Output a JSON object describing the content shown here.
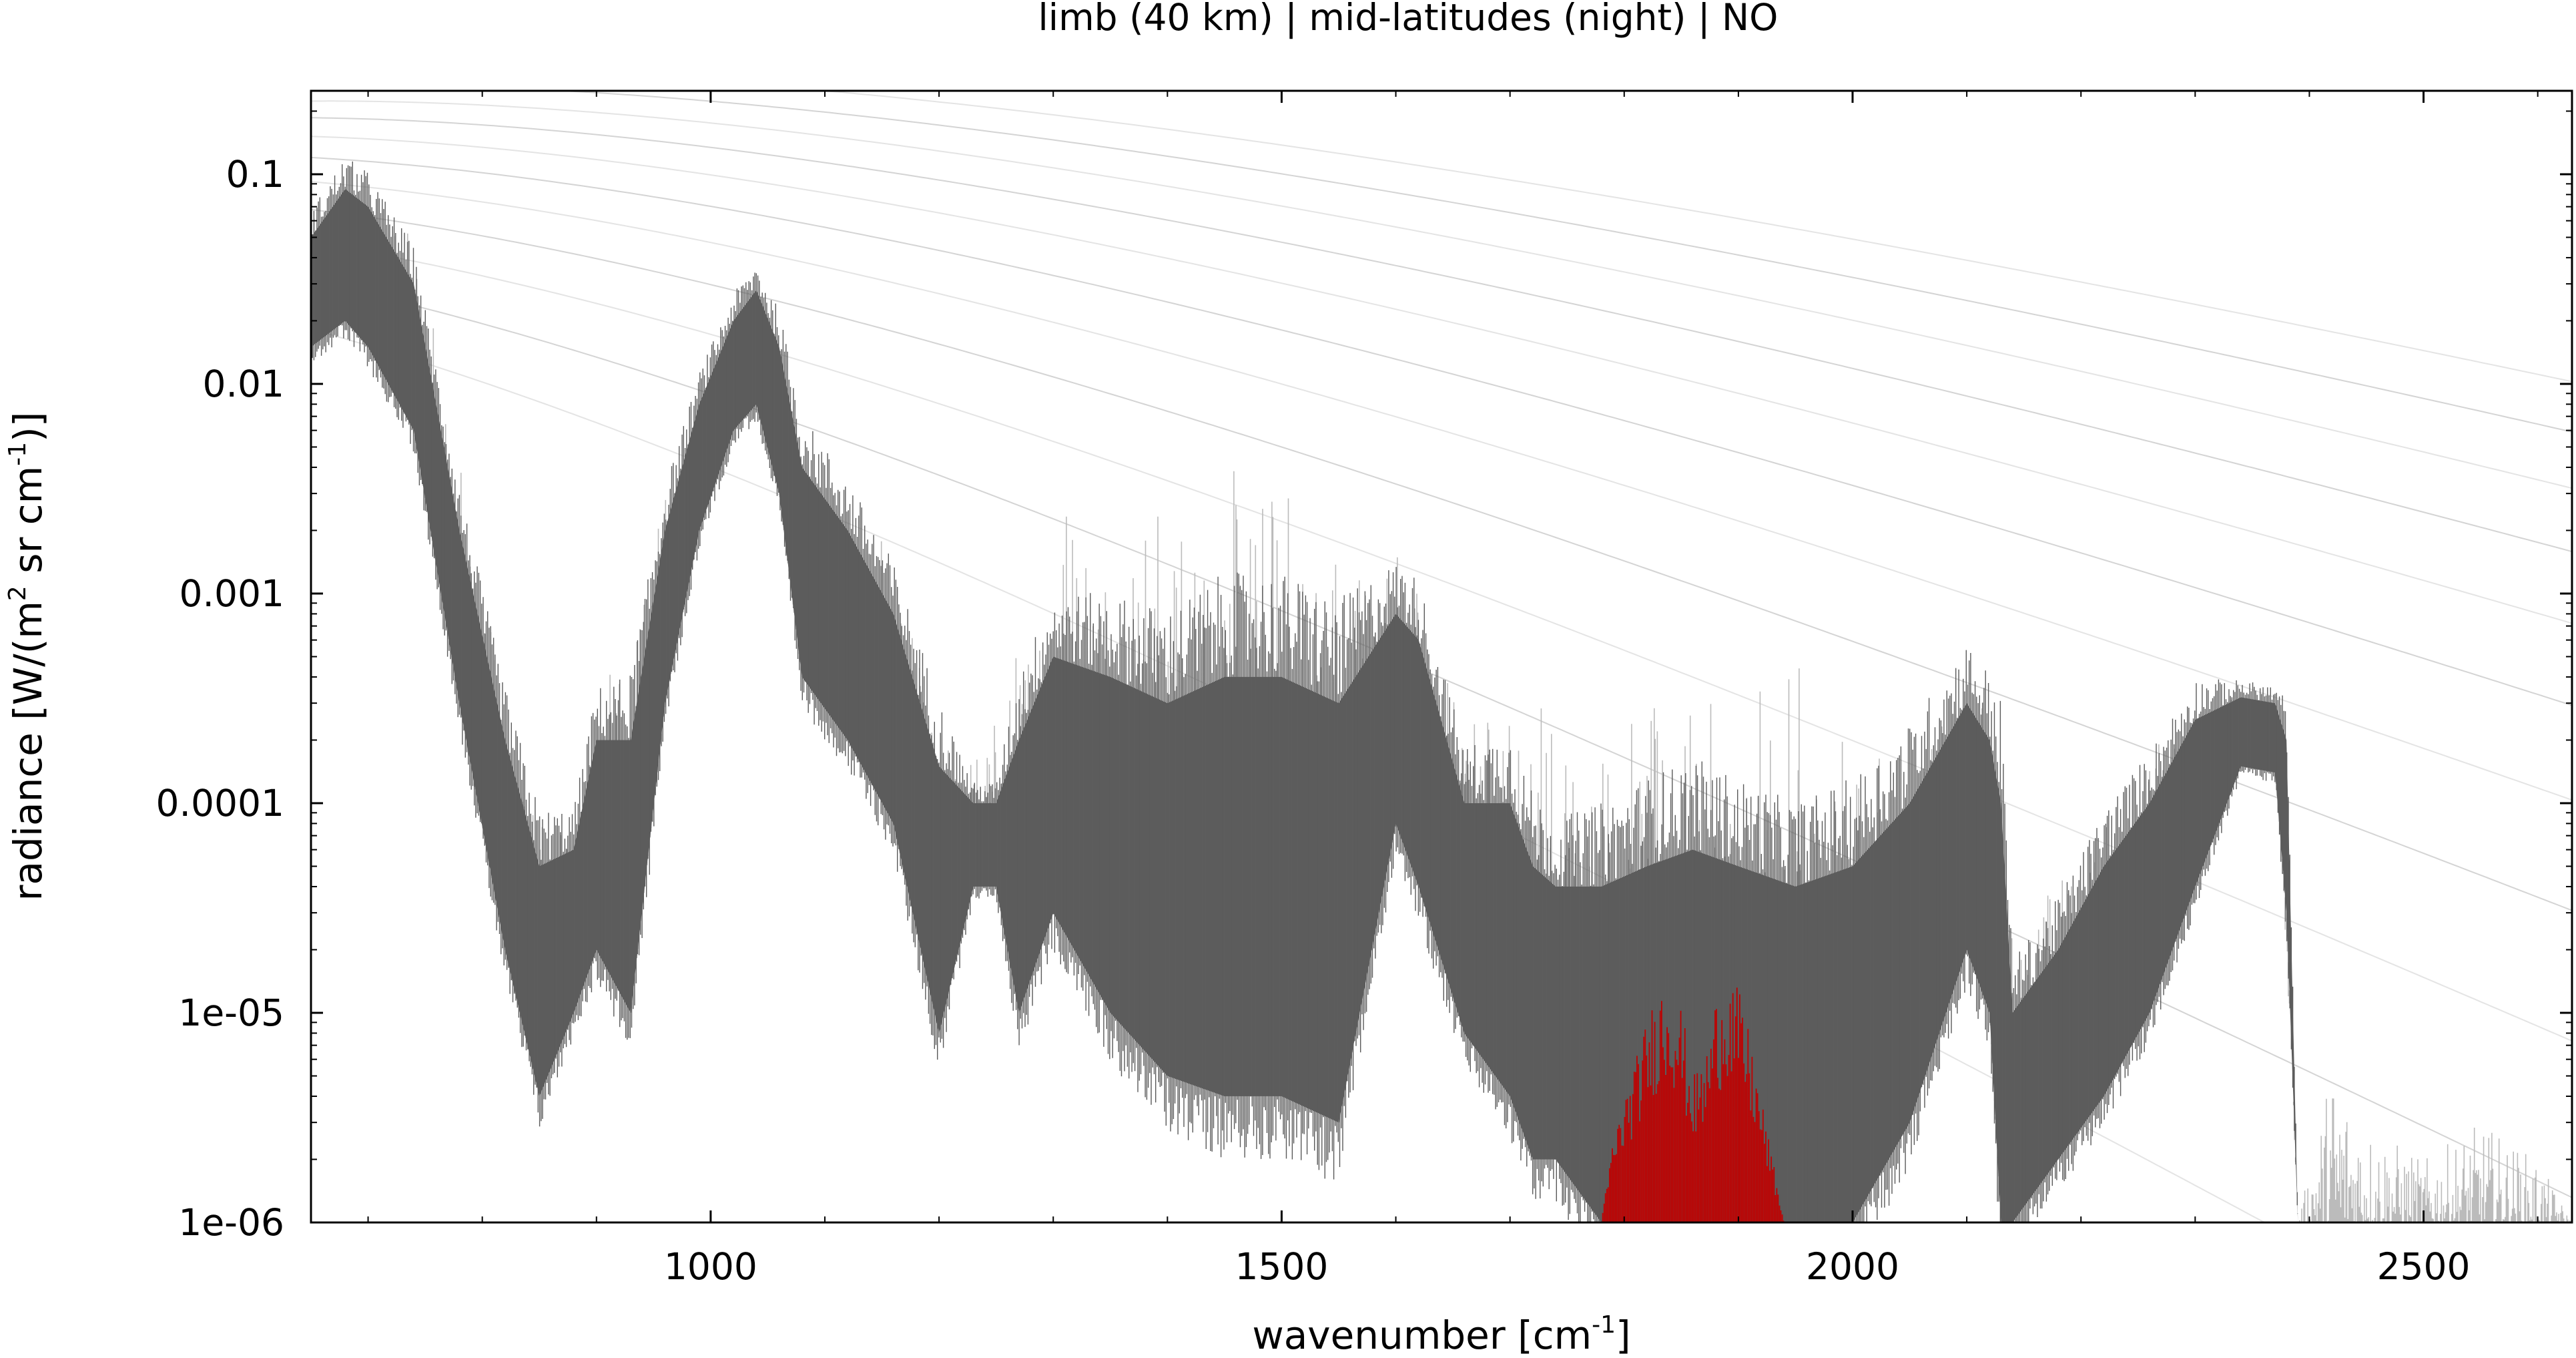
{
  "chart_data": {
    "type": "line",
    "title": "limb (40 km) | mid-latitudes (night) | NO",
    "xlabel": "wavenumber [cm",
    "xlabel_sup": "-1",
    "xlabel_end": "]",
    "ylabel": "radiance [W/(m",
    "ylabel_sup1": "2",
    "ylabel_mid": " sr cm",
    "ylabel_sup2": "-1",
    "ylabel_end": ")]",
    "xlim": [
      650,
      2630
    ],
    "ylim": [
      1e-06,
      0.25
    ],
    "yscale": "log",
    "grid": false,
    "x_ticks": [
      {
        "value": 1000,
        "label": "1000"
      },
      {
        "value": 1500,
        "label": "1500"
      },
      {
        "value": 2000,
        "label": "2000"
      },
      {
        "value": 2500,
        "label": "2500"
      }
    ],
    "y_ticks": [
      {
        "value": 0.1,
        "label": "0.1"
      },
      {
        "value": 0.01,
        "label": "0.01"
      },
      {
        "value": 0.001,
        "label": "0.001"
      },
      {
        "value": 0.0001,
        "label": "0.0001"
      },
      {
        "value": 1e-05,
        "label": "1e-05"
      },
      {
        "value": 1e-06,
        "label": "1e-06"
      }
    ],
    "planck_temperatures_K": [
      180,
      200,
      220,
      240,
      260,
      280,
      300,
      320,
      340,
      360,
      380
    ],
    "series": [
      {
        "role": "total-envelope",
        "color": "#bbbbbb",
        "x": [
          650,
          680,
          700,
          740,
          780,
          820,
          850,
          880,
          900,
          930,
          960,
          990,
          1020,
          1040,
          1060,
          1080,
          1120,
          1160,
          1200,
          1240,
          1260,
          1300,
          1350,
          1400,
          1450,
          1500,
          1550,
          1600,
          1620,
          1660,
          1700,
          1740,
          1780,
          1820,
          1860,
          1900,
          1950,
          2000,
          2050,
          2100,
          2120,
          2140,
          2180,
          2220,
          2260,
          2300,
          2340,
          2370,
          2390,
          2420,
          2450,
          2500,
          2550,
          2600,
          2630
        ],
        "y": [
          0.06,
          0.09,
          0.08,
          0.05,
          0.005,
          0.0003,
          8e-05,
          0.0001,
          0.0004,
          0.0005,
          0.003,
          0.01,
          0.022,
          0.03,
          0.02,
          0.005,
          0.003,
          0.0015,
          0.0002,
          0.0002,
          0.0004,
          0.005,
          0.004,
          0.003,
          0.004,
          0.0045,
          0.003,
          0.002,
          0.0012,
          0.0003,
          0.0004,
          0.0004,
          0.0003,
          0.0003,
          0.0003,
          0.0003,
          0.0005,
          0.0002,
          0.0002,
          0.0003,
          0.0004,
          3e-05,
          5e-05,
          8e-05,
          0.0002,
          0.0003,
          0.00034,
          0.0003,
          1e-06,
          6e-06,
          3e-06,
          2e-06,
          3e-06,
          2e-06,
          1e-06
        ]
      },
      {
        "role": "total-band-upper",
        "color": "#606060",
        "x": [
          650,
          680,
          700,
          740,
          780,
          820,
          850,
          880,
          900,
          930,
          960,
          990,
          1020,
          1040,
          1060,
          1080,
          1120,
          1160,
          1200,
          1230,
          1250,
          1270,
          1300,
          1350,
          1400,
          1450,
          1500,
          1550,
          1600,
          1620,
          1660,
          1700,
          1720,
          1740,
          1780,
          1820,
          1860,
          1900,
          1950,
          2000,
          2050,
          2100,
          2120,
          2130,
          2140,
          2180,
          2220,
          2260,
          2300,
          2340,
          2370,
          2380,
          2390,
          2630
        ],
        "y": [
          0.05,
          0.085,
          0.07,
          0.03,
          0.002,
          0.0002,
          5e-05,
          6e-05,
          0.0002,
          0.0002,
          0.002,
          0.008,
          0.02,
          0.028,
          0.015,
          0.004,
          0.002,
          0.0008,
          0.00015,
          0.0001,
          0.0001,
          0.0002,
          0.0005,
          0.0004,
          0.0003,
          0.0004,
          0.0004,
          0.0003,
          0.0008,
          0.0006,
          0.0001,
          0.0001,
          5e-05,
          4e-05,
          4e-05,
          5e-05,
          6e-05,
          5e-05,
          4e-05,
          5e-05,
          0.0001,
          0.0003,
          0.0002,
          0.0001,
          1e-05,
          2e-05,
          5e-05,
          0.0001,
          0.00025,
          0.00032,
          0.0003,
          0.0002,
          1e-06,
          1e-06
        ]
      },
      {
        "role": "total-band-lower",
        "color": "#606060",
        "x": [
          650,
          680,
          700,
          740,
          780,
          820,
          850,
          880,
          900,
          930,
          960,
          990,
          1020,
          1040,
          1060,
          1080,
          1120,
          1160,
          1200,
          1230,
          1250,
          1270,
          1300,
          1350,
          1400,
          1450,
          1500,
          1550,
          1600,
          1620,
          1660,
          1700,
          1720,
          1740,
          1780,
          1820,
          1860,
          1900,
          1950,
          2000,
          2050,
          2100,
          2120,
          2130,
          2140,
          2180,
          2220,
          2260,
          2300,
          2340,
          2370,
          2380,
          2390,
          2630
        ],
        "y": [
          0.015,
          0.02,
          0.015,
          0.006,
          0.0003,
          2e-05,
          4e-06,
          1e-05,
          2e-05,
          1e-05,
          0.0003,
          0.002,
          0.006,
          0.008,
          0.003,
          0.0004,
          0.0002,
          8e-05,
          8e-06,
          4e-05,
          4e-05,
          1e-05,
          3e-05,
          1e-05,
          5e-06,
          4e-06,
          4e-06,
          3e-06,
          8e-05,
          4e-05,
          8e-06,
          4e-06,
          2e-06,
          2e-06,
          1e-06,
          1e-06,
          1e-06,
          1e-06,
          1e-06,
          1e-06,
          3e-06,
          2e-05,
          1e-05,
          1e-06,
          1e-06,
          2e-06,
          4e-06,
          1e-05,
          4e-05,
          0.00015,
          0.00014,
          3e-05,
          1e-06,
          1e-06
        ]
      },
      {
        "name": "NO",
        "role": "gas-contribution",
        "color": "#c00000",
        "x": [
          1780,
          1790,
          1800,
          1810,
          1820,
          1830,
          1840,
          1850,
          1860,
          1870,
          1880,
          1890,
          1900,
          1910,
          1920,
          1930,
          1940
        ],
        "y": [
          1e-06,
          2.5e-06,
          4e-06,
          6e-06,
          9.5e-06,
          1.4e-05,
          1.6e-05,
          1.1e-05,
          5e-06,
          6e-06,
          1.2e-05,
          1.7e-05,
          1.3e-05,
          8e-06,
          4e-06,
          2e-06,
          1e-06
        ]
      }
    ]
  }
}
